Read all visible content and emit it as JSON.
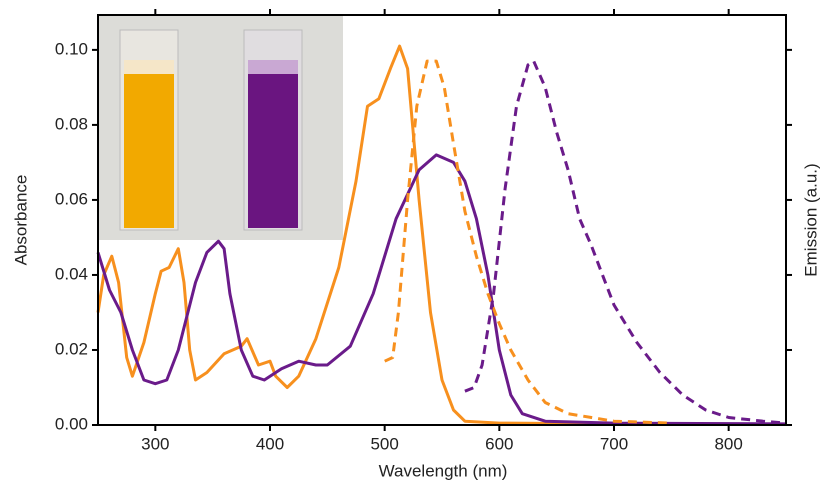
{
  "chart_data": {
    "type": "line",
    "xlabel": "Wavelength (nm)",
    "ylabel": "Absorbance",
    "y2label": "Emission (a.u.)",
    "xlim": [
      250,
      850
    ],
    "xticks": [
      300,
      400,
      500,
      600,
      700,
      800
    ],
    "ylim": [
      0,
      0.1093
    ],
    "yticks": [
      {
        "value": 0,
        "label": "0.00"
      },
      {
        "value": 0.02,
        "label": "0.02"
      },
      {
        "value": 0.04,
        "label": "0.04"
      },
      {
        "value": 0.06,
        "label": "0.06"
      },
      {
        "value": 0.08,
        "label": "0.08"
      },
      {
        "value": 0.1,
        "label": "0.10"
      }
    ],
    "series": [
      {
        "color": "#f7901e",
        "dashed": false,
        "x": [
          250,
          255,
          262,
          268,
          275,
          280,
          290,
          300,
          305,
          312,
          320,
          325,
          330,
          335,
          345,
          360,
          375,
          380,
          390,
          400,
          405,
          415,
          425,
          440,
          460,
          475,
          485,
          495,
          505,
          513,
          520,
          530,
          540,
          550,
          560,
          570,
          600,
          700,
          850
        ],
        "values": [
          0.03,
          0.04,
          0.045,
          0.038,
          0.018,
          0.013,
          0.022,
          0.035,
          0.041,
          0.042,
          0.047,
          0.038,
          0.02,
          0.012,
          0.014,
          0.019,
          0.021,
          0.023,
          0.016,
          0.017,
          0.013,
          0.01,
          0.013,
          0.023,
          0.042,
          0.065,
          0.085,
          0.087,
          0.095,
          0.101,
          0.095,
          0.06,
          0.03,
          0.012,
          0.004,
          0.001,
          0.0005,
          0.0003,
          0.0002
        ]
      },
      {
        "color": "#6a1b8a",
        "dashed": false,
        "x": [
          250,
          260,
          270,
          280,
          290,
          300,
          310,
          320,
          335,
          345,
          355,
          360,
          365,
          375,
          385,
          395,
          410,
          425,
          440,
          450,
          470,
          490,
          510,
          530,
          545,
          560,
          570,
          580,
          590,
          600,
          610,
          620,
          640,
          700,
          850
        ],
        "values": [
          0.046,
          0.036,
          0.03,
          0.02,
          0.012,
          0.011,
          0.012,
          0.02,
          0.038,
          0.046,
          0.049,
          0.047,
          0.035,
          0.02,
          0.013,
          0.012,
          0.015,
          0.017,
          0.016,
          0.016,
          0.021,
          0.035,
          0.055,
          0.068,
          0.072,
          0.07,
          0.065,
          0.055,
          0.04,
          0.02,
          0.008,
          0.003,
          0.001,
          0.0005,
          0.0003
        ]
      },
      {
        "color": "#f7901e",
        "dashed": true,
        "x": [
          500,
          507,
          512,
          520,
          528,
          537,
          545,
          552,
          560,
          570,
          580,
          590,
          600,
          610,
          625,
          640,
          660,
          700,
          750
        ],
        "values": [
          0.017,
          0.018,
          0.03,
          0.06,
          0.085,
          0.097,
          0.097,
          0.09,
          0.075,
          0.057,
          0.045,
          0.035,
          0.027,
          0.02,
          0.012,
          0.006,
          0.003,
          0.001,
          0.0005
        ]
      },
      {
        "color": "#6a1b8a",
        "dashed": true,
        "x": [
          570,
          578,
          585,
          595,
          605,
          615,
          625,
          630,
          640,
          650,
          660,
          670,
          680,
          690,
          700,
          720,
          740,
          760,
          780,
          800,
          830,
          850
        ],
        "values": [
          0.009,
          0.01,
          0.016,
          0.035,
          0.063,
          0.085,
          0.096,
          0.097,
          0.09,
          0.078,
          0.068,
          0.055,
          0.048,
          0.04,
          0.032,
          0.022,
          0.014,
          0.008,
          0.004,
          0.002,
          0.001,
          0.0005
        ]
      }
    ]
  }
}
